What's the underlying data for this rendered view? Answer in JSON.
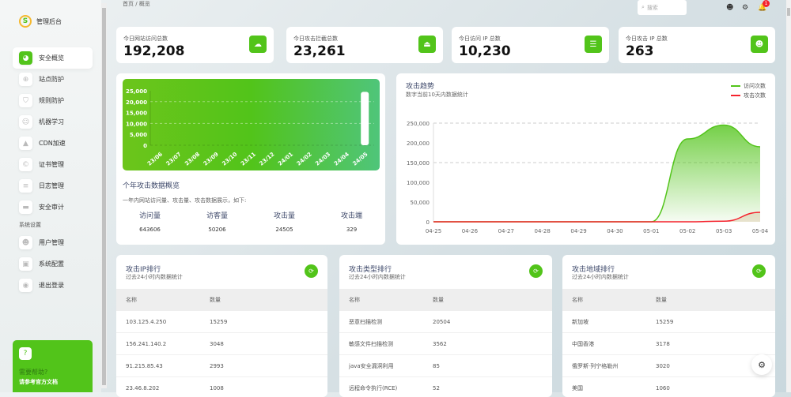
{
  "app": {
    "logo_letter": "S",
    "title": "管理后台"
  },
  "sidebar": {
    "items": [
      {
        "label": "安全概览",
        "icon": "pie-chart-icon",
        "glyph": "◕",
        "active": true
      },
      {
        "label": "站点防护",
        "icon": "globe-icon",
        "glyph": "⊕"
      },
      {
        "label": "规则防护",
        "icon": "shield-icon",
        "glyph": "⛉"
      },
      {
        "label": "机器学习",
        "icon": "robot-icon",
        "glyph": "☺"
      },
      {
        "label": "CDN加速",
        "icon": "rocket-icon",
        "glyph": "▲"
      },
      {
        "label": "证书管理",
        "icon": "certificate-icon",
        "glyph": "©"
      },
      {
        "label": "日志管理",
        "icon": "database-icon",
        "glyph": "≡"
      },
      {
        "label": "安全审计",
        "icon": "monitor-icon",
        "glyph": "▬"
      }
    ],
    "section": "系统设置",
    "system_items": [
      {
        "label": "用户管理",
        "icon": "user-icon",
        "glyph": "☻"
      },
      {
        "label": "系统配置",
        "icon": "settings-icon",
        "glyph": "▣"
      },
      {
        "label": "退出登录",
        "icon": "logout-icon",
        "glyph": "◉"
      }
    ],
    "help": {
      "glyph": "?",
      "title": "需要帮助?",
      "subtitle": "请参考官方文档"
    }
  },
  "header": {
    "breadcrumb": "首页 / 概览",
    "search_placeholder": "搜索",
    "notification_count": "1"
  },
  "stats": [
    {
      "label": "今日网站访问总数",
      "value": "192,208",
      "icon": "cloud-icon",
      "glyph": "☁"
    },
    {
      "label": "今日攻击拦截总数",
      "value": "23,261",
      "icon": "lock-icon",
      "glyph": "⏏"
    },
    {
      "label": "今日访问 IP 总数",
      "value": "10,230",
      "icon": "user-list-icon",
      "glyph": "☰"
    },
    {
      "label": "今日攻击 IP 总数",
      "value": "263",
      "icon": "user-icon",
      "glyph": "☻"
    }
  ],
  "summary": {
    "title": "个年攻击数据概览",
    "subtitle": "一年内网站访问量、攻击量、攻击数据展示，如下:",
    "cols": [
      {
        "label": "访问量",
        "value": "643606"
      },
      {
        "label": "访客量",
        "value": "50206"
      },
      {
        "label": "攻击量",
        "value": "24505"
      },
      {
        "label": "攻击端",
        "value": "329"
      }
    ]
  },
  "trend": {
    "title": "攻击趋势",
    "subtitle": "数字当前10天内数据统计"
  },
  "chart_data": [
    {
      "type": "bar",
      "categories": [
        "23/06",
        "23/07",
        "23/08",
        "23/09",
        "23/10",
        "23/11",
        "23/12",
        "24/01",
        "24/02",
        "24/03",
        "24/04",
        "24/05"
      ],
      "values": [
        0,
        0,
        0,
        0,
        0,
        0,
        0,
        0,
        0,
        0,
        0,
        24505
      ],
      "ylim": [
        0,
        25000
      ],
      "yticks": [
        "0",
        "5,000",
        "10,000",
        "15,000",
        "20,000",
        "25,000"
      ],
      "colors": {
        "bar": "#ffffff"
      }
    },
    {
      "type": "area",
      "categories": [
        "04-25",
        "04-26",
        "04-27",
        "04-28",
        "04-29",
        "04-30",
        "05-01",
        "05-02",
        "05-03",
        "05-04"
      ],
      "ylim": [
        0,
        250000
      ],
      "yticks": [
        "0",
        "50,000",
        "100,000",
        "150,000",
        "200,000",
        "250,000"
      ],
      "legend": "top-right",
      "grid": true,
      "series": [
        {
          "name": "访问次数",
          "color": "#52c41a",
          "values": [
            0,
            0,
            0,
            0,
            0,
            0,
            0,
            210000,
            245000,
            190000
          ]
        },
        {
          "name": "攻击次数",
          "color": "#f5222d",
          "values": [
            0,
            0,
            0,
            0,
            0,
            0,
            0,
            0,
            1500,
            24000
          ]
        }
      ]
    }
  ],
  "rankings": [
    {
      "title": "攻击IP排行",
      "subtitle": "过去24小时内数据统计",
      "headers": [
        "名称",
        "数量"
      ],
      "rows": [
        [
          "103.125.4.250",
          "15259"
        ],
        [
          "156.241.140.2",
          "3048"
        ],
        [
          "91.215.85.43",
          "2993"
        ],
        [
          "23.46.8.202",
          "1008"
        ]
      ]
    },
    {
      "title": "攻击类型排行",
      "subtitle": "过去24小时内数据统计",
      "headers": [
        "名称",
        "数量"
      ],
      "rows": [
        [
          "恶意扫描检测",
          "20504"
        ],
        [
          "敏感文件扫描检测",
          "3562"
        ],
        [
          "java安全漏洞利用",
          "85"
        ],
        [
          "远程命令执行(RCE)",
          "52"
        ]
      ]
    },
    {
      "title": "攻击地域排行",
      "subtitle": "过去24小时内数据统计",
      "headers": [
        "名称",
        "数量"
      ],
      "rows": [
        [
          "新加坡",
          "15259"
        ],
        [
          "中国香港",
          "3178"
        ],
        [
          "俄罗斯·列宁格勒州",
          "3020"
        ],
        [
          "美国",
          "1060"
        ]
      ]
    }
  ]
}
